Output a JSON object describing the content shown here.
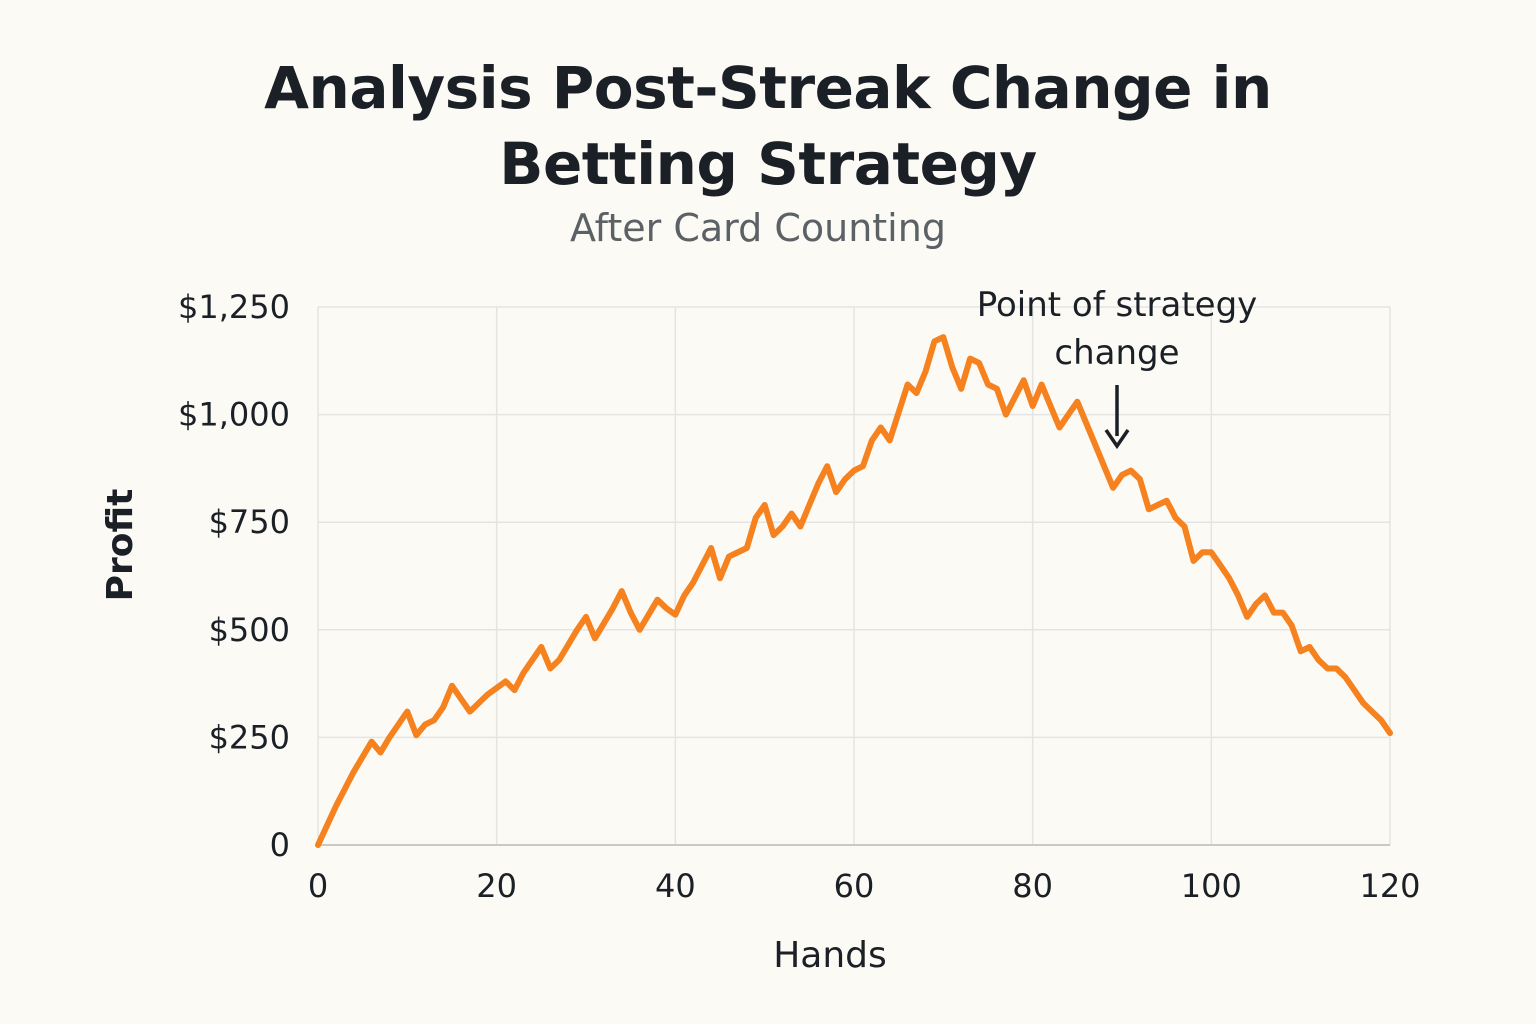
{
  "chart_data": {
    "type": "line",
    "title": "Analysis Post-Streak Change in Betting Strategy",
    "title_lines": [
      "Analysis Post-Streak Change in",
      "Betting Strategy"
    ],
    "subtitle": "After Card Counting",
    "xlabel": "Hands",
    "ylabel": "Profit",
    "xlim": [
      0,
      120
    ],
    "ylim": [
      0,
      1250
    ],
    "x_ticks": [
      0,
      20,
      40,
      60,
      80,
      100,
      120
    ],
    "x_tick_labels": [
      "0",
      "20",
      "40",
      "60",
      "80",
      "100",
      "120"
    ],
    "y_ticks": [
      0,
      250,
      500,
      750,
      1000,
      1250
    ],
    "y_tick_labels": [
      "0",
      "$250",
      "$500",
      "$750",
      "$1,000",
      "$1,250"
    ],
    "grid": true,
    "line_color": "#f5811f",
    "grid_color": "#e4e4e2",
    "series": [
      {
        "x": [
          0,
          2,
          4,
          6,
          7,
          8,
          10,
          11,
          12,
          13,
          14,
          15,
          16,
          17,
          18,
          19,
          20,
          21,
          22,
          23,
          25,
          26,
          27,
          29,
          30,
          31,
          33,
          34,
          35,
          36,
          38,
          39,
          40,
          41,
          42,
          43,
          44,
          45,
          46,
          48,
          49,
          50,
          51,
          52,
          53,
          54,
          55,
          56,
          57,
          58,
          59,
          60,
          61,
          62,
          63,
          64,
          66,
          67,
          68,
          69,
          70,
          71,
          72,
          73,
          74,
          75,
          76,
          77,
          78,
          79,
          80,
          81,
          82,
          83,
          84,
          85,
          87,
          88,
          89,
          90,
          91,
          92,
          93,
          94,
          95,
          96,
          97,
          98,
          99,
          100,
          101,
          102,
          103,
          104,
          105,
          106,
          107,
          108,
          109,
          110,
          111,
          112,
          113,
          114,
          115,
          116,
          117,
          118,
          119,
          120
        ],
        "y": [
          0,
          90,
          170,
          240,
          215,
          250,
          310,
          255,
          280,
          290,
          320,
          370,
          340,
          310,
          330,
          350,
          365,
          380,
          360,
          400,
          460,
          410,
          430,
          500,
          530,
          480,
          550,
          590,
          540,
          500,
          570,
          550,
          535,
          580,
          610,
          650,
          690,
          620,
          670,
          690,
          760,
          790,
          720,
          740,
          770,
          740,
          790,
          840,
          880,
          820,
          850,
          870,
          880,
          940,
          970,
          940,
          1070,
          1050,
          1100,
          1170,
          1180,
          1110,
          1060,
          1130,
          1120,
          1070,
          1060,
          1000,
          1040,
          1080,
          1020,
          1070,
          1020,
          970,
          1000,
          1030,
          930,
          880,
          830,
          860,
          870,
          850,
          780,
          790,
          800,
          760,
          740,
          660,
          680,
          680,
          650,
          620,
          580,
          530,
          560,
          580,
          540,
          540,
          510,
          450,
          460,
          430,
          410,
          410,
          390,
          360,
          330,
          310,
          290,
          260
        ]
      }
    ],
    "annotation": {
      "lines": [
        "Point of strategy",
        "change"
      ],
      "x": 90,
      "y": 870
    }
  }
}
